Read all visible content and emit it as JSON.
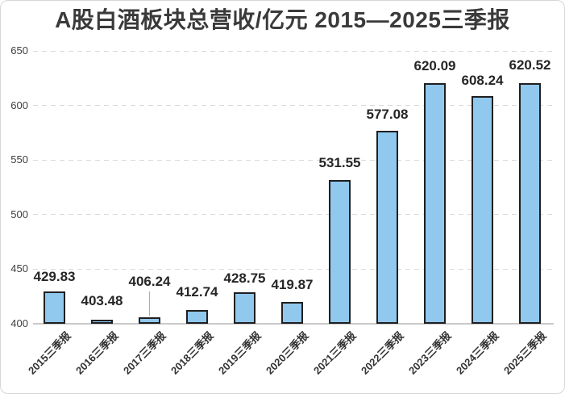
{
  "frame": {
    "background": "#ffffff",
    "border_color": "#d6d6d6"
  },
  "chart_data": {
    "type": "bar",
    "title": "A股白酒板块总营收/亿元 2015—2025三季报",
    "xlabel": "",
    "ylabel": "",
    "categories": [
      "2015三季报",
      "2016三季报",
      "2017三季报",
      "2018三季报",
      "2019三季报",
      "2020三季报",
      "2021三季报",
      "2022三季报",
      "2023三季报",
      "2024三季报",
      "2025三季报"
    ],
    "values": [
      429.83,
      403.48,
      406.24,
      412.74,
      428.75,
      419.87,
      531.55,
      577.08,
      620.09,
      608.24,
      620.52
    ],
    "value_labels": [
      "429.83",
      "403.48",
      "406.24",
      "412.74",
      "428.75",
      "419.87",
      "531.55",
      "577.08",
      "620.09",
      "608.24",
      "620.52"
    ],
    "ylim": [
      400,
      650
    ],
    "yticks": [
      400,
      450,
      500,
      550,
      600,
      650
    ],
    "grid": "horizontal-dashed",
    "legend": "none",
    "colors": {
      "bar_fill": "#90C8EE",
      "bar_outline": "#1f1f1f",
      "title_color": "#3a3a3a",
      "value_label_color": "#262626",
      "axis_tick_color": "#404040",
      "category_label_color": "#333333",
      "gridline_color": "#d9d9d9",
      "baseline_color": "#c9c9c9",
      "leader_line_color": "#ababab"
    },
    "label_offsets": [
      8,
      13,
      34,
      12,
      7,
      11,
      11,
      10,
      11,
      9,
      12
    ],
    "leader_line_indices": [
      2
    ]
  }
}
